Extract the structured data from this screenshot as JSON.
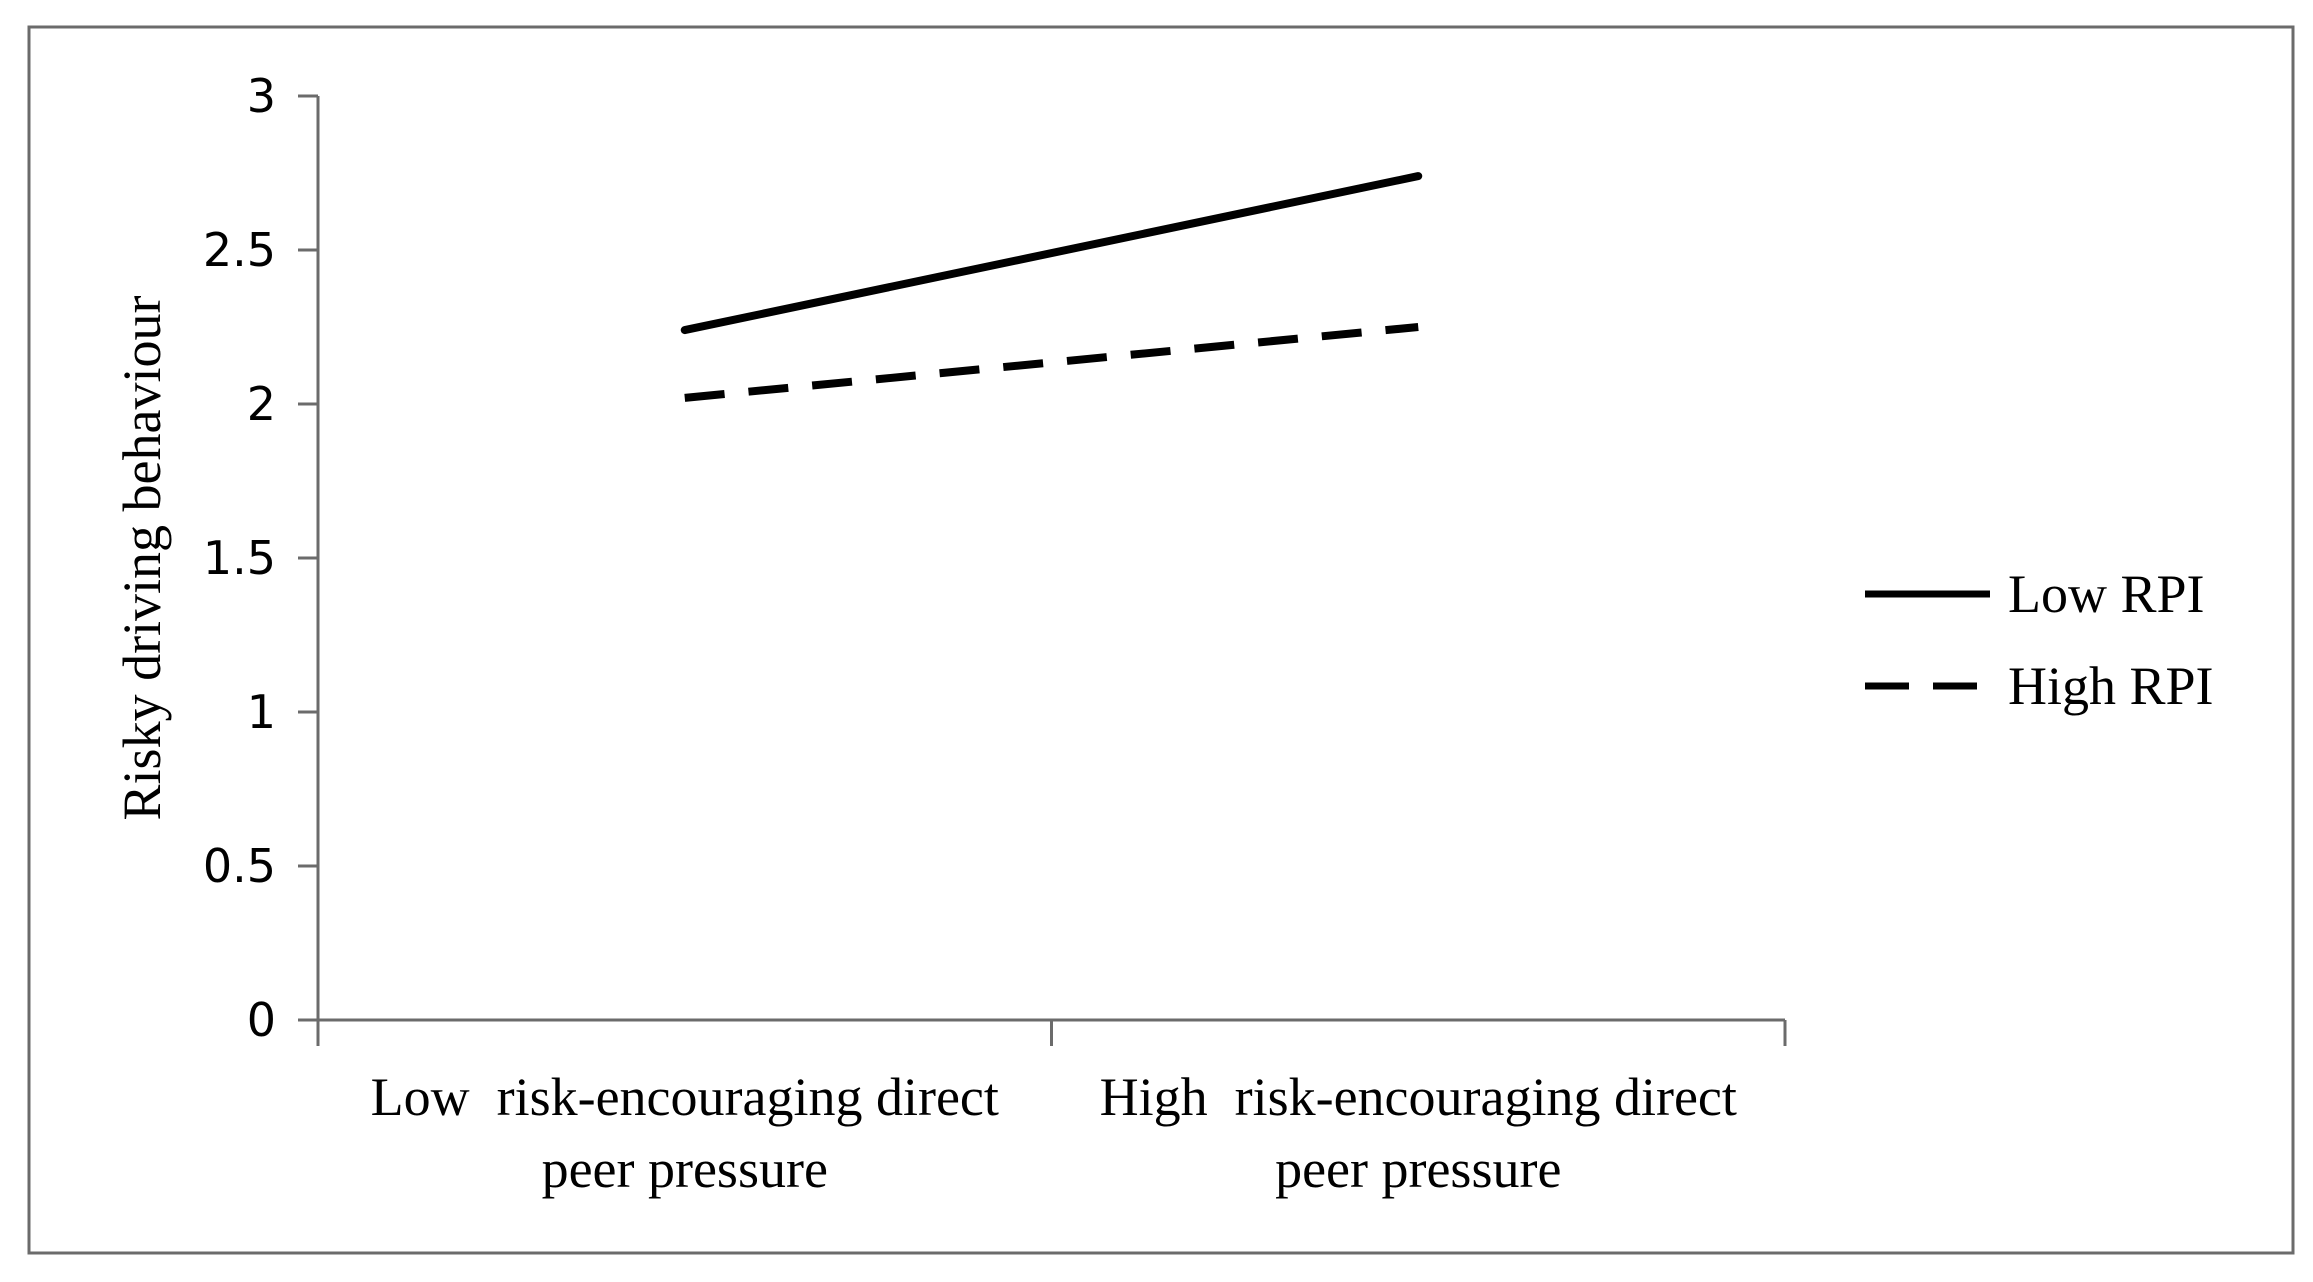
{
  "chart_data": {
    "type": "line",
    "title": "",
    "xlabel": "",
    "ylabel": "Risky driving behaviour",
    "ylim": [
      0,
      3
    ],
    "y_ticks": [
      "0",
      "0.5",
      "1",
      "1.5",
      "2",
      "2.5",
      "3"
    ],
    "categories": [
      [
        "Low  risk-encouraging direct",
        "peer pressure"
      ],
      [
        "High  risk-encouraging direct",
        "peer pressure"
      ]
    ],
    "series": [
      {
        "name": "Low RPI",
        "values": [
          2.24,
          2.74
        ],
        "style": "solid",
        "color": "#000000"
      },
      {
        "name": "High RPI",
        "values": [
          2.02,
          2.25
        ],
        "style": "dashed",
        "color": "#000000"
      }
    ],
    "grid": false,
    "legend": "right",
    "frame_color": "#6b6b6b"
  }
}
